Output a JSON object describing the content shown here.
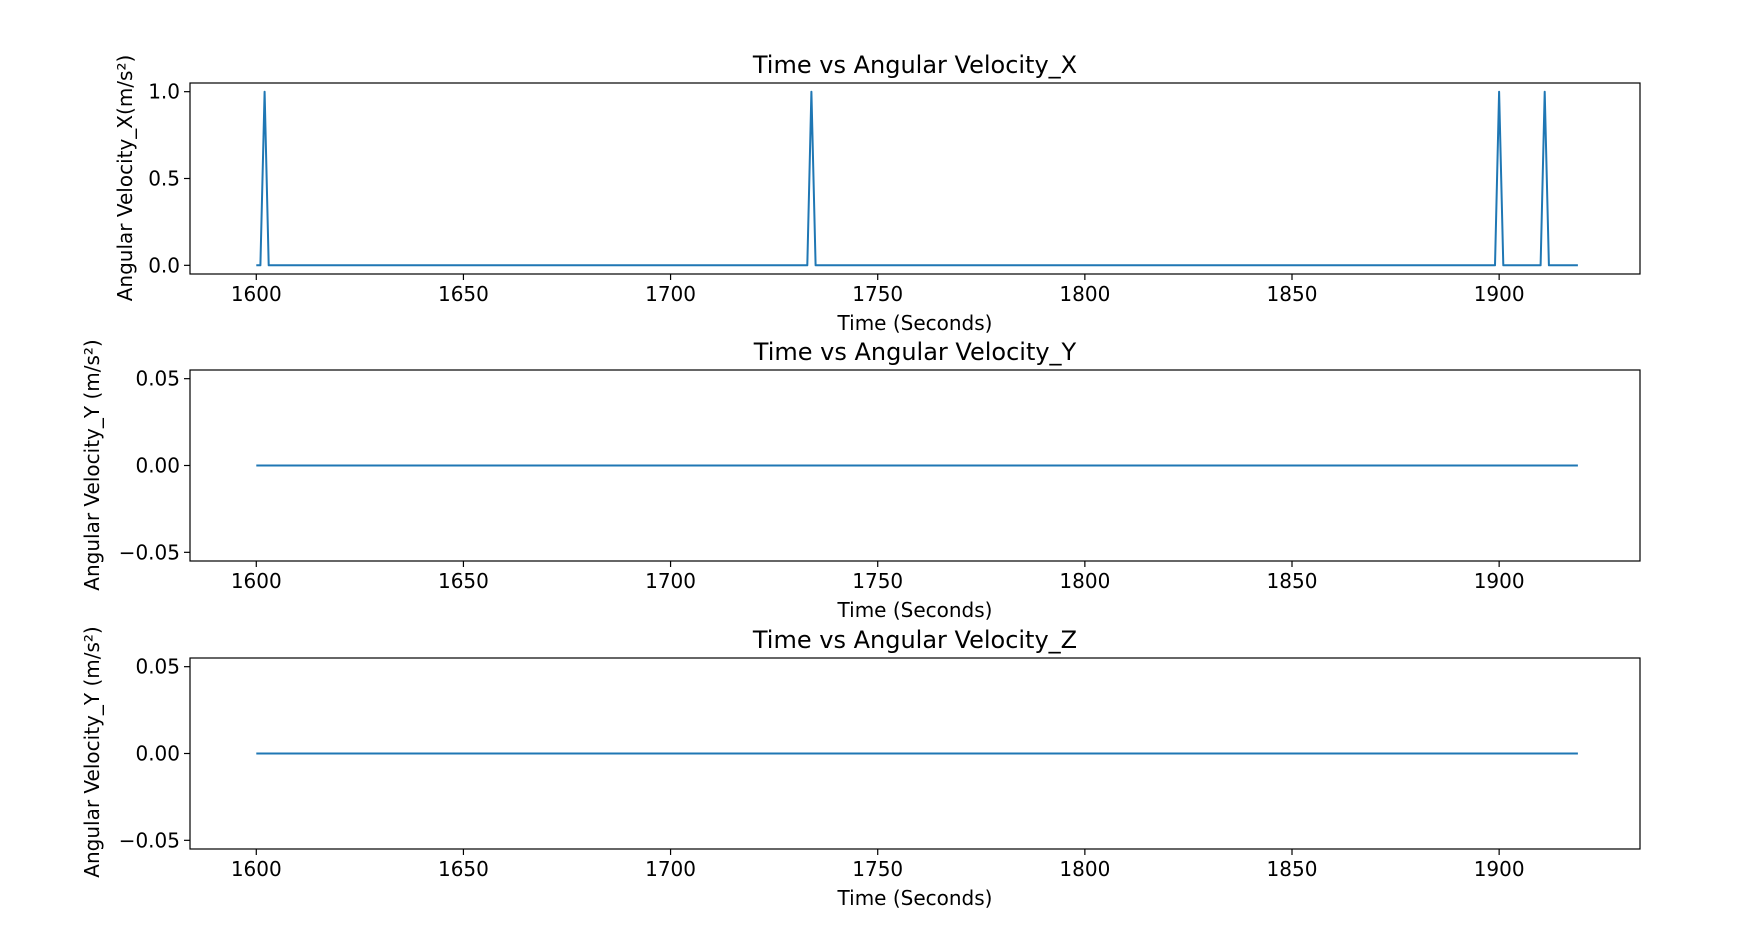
{
  "colors": {
    "series": "#1f77b4"
  },
  "chart_data": [
    {
      "type": "line",
      "title": "Time vs Angular Velocity_X",
      "xlabel": "Time (Seconds)",
      "ylabel": "Angular Velocity_X(m/s²)",
      "xlim": [
        1584,
        1934
      ],
      "ylim": [
        -0.05,
        1.05
      ],
      "xticks": [
        1600,
        1650,
        1700,
        1750,
        1800,
        1850,
        1900
      ],
      "xtick_labels": [
        "1600",
        "1650",
        "1700",
        "1750",
        "1800",
        "1850",
        "1900"
      ],
      "yticks": [
        0.0,
        0.5,
        1.0
      ],
      "ytick_labels": [
        "0.0",
        "0.5",
        "1.0"
      ],
      "grid": false,
      "series": [
        {
          "x": [
            1600,
            1601,
            1602,
            1603,
            1733,
            1734,
            1735,
            1899,
            1900,
            1901,
            1910,
            1911,
            1912,
            1919
          ],
          "values": [
            0,
            0,
            1,
            0,
            0,
            1,
            0,
            0,
            1,
            0,
            0,
            1,
            0,
            0
          ]
        }
      ]
    },
    {
      "type": "line",
      "title": "Time vs Angular Velocity_Y",
      "xlabel": "Time (Seconds)",
      "ylabel": "Angular Velocity_Y (m/s²)",
      "xlim": [
        1584,
        1934
      ],
      "ylim": [
        -0.055,
        0.055
      ],
      "xticks": [
        1600,
        1650,
        1700,
        1750,
        1800,
        1850,
        1900
      ],
      "xtick_labels": [
        "1600",
        "1650",
        "1700",
        "1750",
        "1800",
        "1850",
        "1900"
      ],
      "yticks": [
        -0.05,
        0.0,
        0.05
      ],
      "ytick_labels": [
        "−0.05",
        "0.00",
        "0.05"
      ],
      "grid": false,
      "series": [
        {
          "x": [
            1600,
            1919
          ],
          "values": [
            0,
            0
          ]
        }
      ]
    },
    {
      "type": "line",
      "title": "Time vs Angular Velocity_Z",
      "xlabel": "Time (Seconds)",
      "ylabel": "Angular Velocity_Y (m/s²)",
      "xlim": [
        1584,
        1934
      ],
      "ylim": [
        -0.055,
        0.055
      ],
      "xticks": [
        1600,
        1650,
        1700,
        1750,
        1800,
        1850,
        1900
      ],
      "xtick_labels": [
        "1600",
        "1650",
        "1700",
        "1750",
        "1800",
        "1850",
        "1900"
      ],
      "yticks": [
        -0.05,
        0.0,
        0.05
      ],
      "ytick_labels": [
        "−0.05",
        "0.00",
        "0.05"
      ],
      "grid": false,
      "series": [
        {
          "x": [
            1600,
            1919
          ],
          "values": [
            0,
            0
          ]
        }
      ]
    }
  ]
}
